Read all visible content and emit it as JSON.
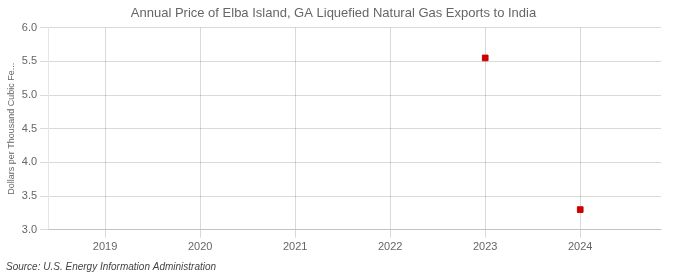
{
  "chart_data": {
    "type": "scatter",
    "title": "Annual Price of Elba Island, GA Liquefied Natural Gas Exports to India",
    "ylabel": "Dollars per Thousand Cubic Fe...",
    "annotations": [
      "Source: U.S. Energy Information Administration"
    ],
    "x": [
      2023,
      2024
    ],
    "values": [
      5.55,
      3.3
    ],
    "color": "#cc0000",
    "marker": "square",
    "xlim": [
      2018.4,
      2024.85
    ],
    "xticks": [
      2019,
      2020,
      2021,
      2022,
      2023,
      2024
    ],
    "ylim": [
      3.0,
      6.0
    ],
    "yticks": [
      {
        "value": 3,
        "label": "3.0"
      },
      3.5,
      {
        "value": 4,
        "label": "4.0"
      },
      4.5,
      {
        "value": 5,
        "label": "5.0"
      },
      5.5,
      {
        "value": 6,
        "label": "6.0"
      }
    ],
    "grid": true
  }
}
